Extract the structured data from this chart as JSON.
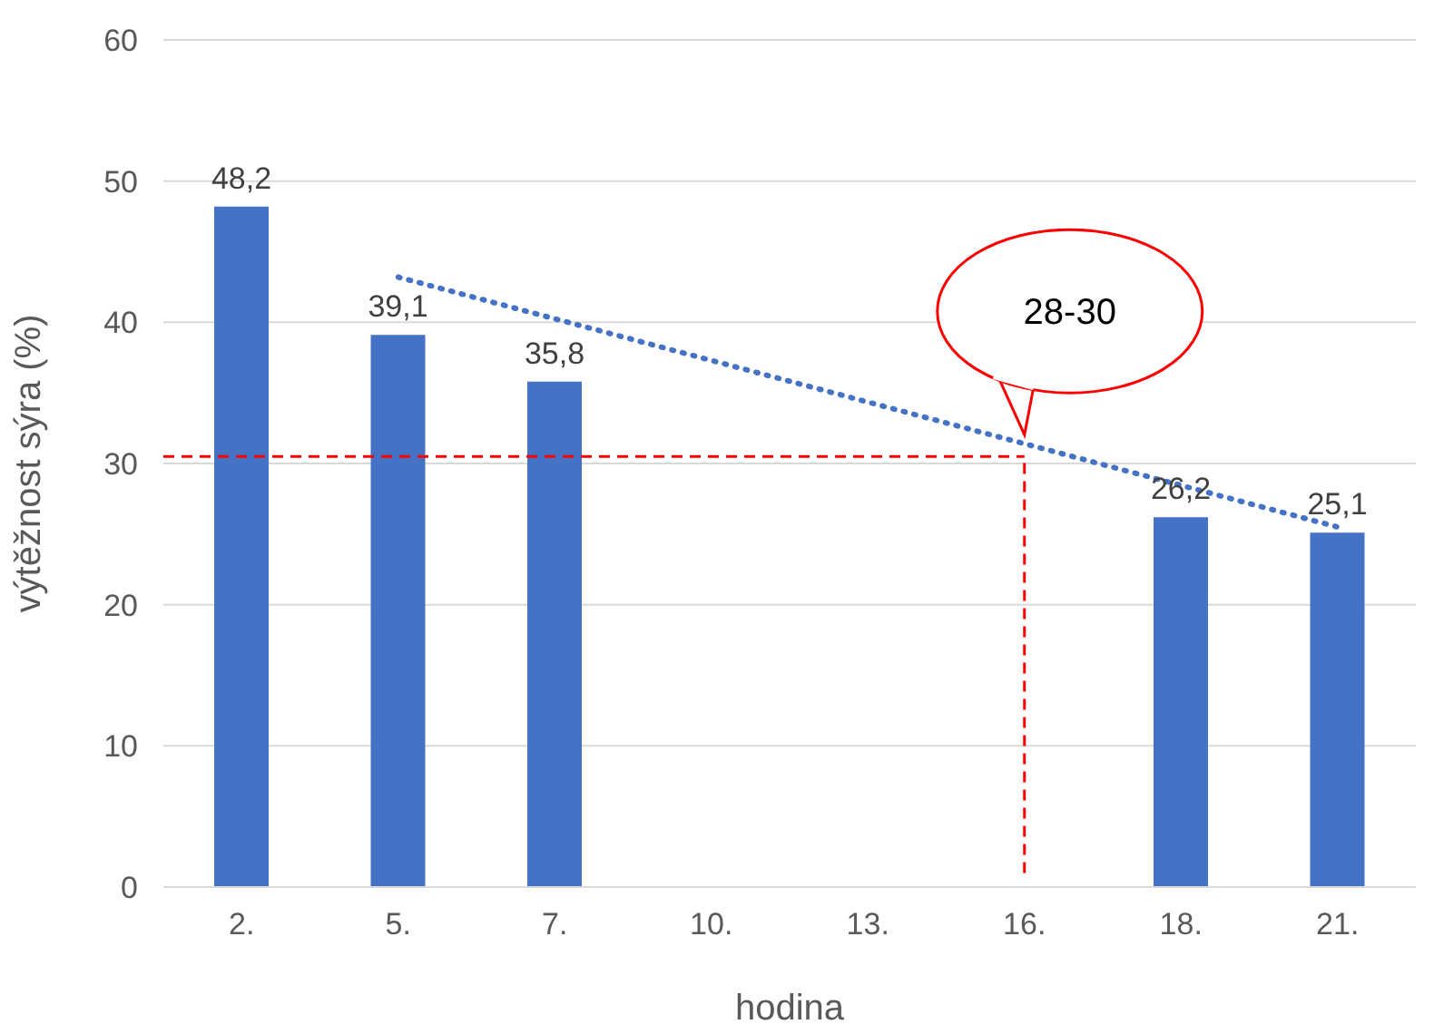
{
  "chart_data": {
    "type": "bar",
    "xlabel": "hodina",
    "ylabel": "výtěžnost sýra (%)",
    "categories": [
      "2.",
      "5.",
      "7.",
      "10.",
      "13.",
      "16.",
      "18.",
      "21."
    ],
    "series": [
      {
        "color": "#4472c4",
        "values": [
          48.2,
          39.1,
          35.8,
          null,
          null,
          null,
          26.2,
          25.1
        ],
        "value_labels": [
          "48,2",
          "39,1",
          "35,8",
          null,
          null,
          null,
          "26,2",
          "25,1"
        ]
      },
      {
        "type": "line",
        "color": "#4472c4",
        "line_style": "dotted",
        "marker": "none",
        "x": [
          "5.",
          "21."
        ],
        "values": [
          43.2,
          25.5
        ]
      }
    ],
    "ylim": [
      0,
      60
    ],
    "yticks": [
      0,
      10,
      20,
      30,
      40,
      50,
      60
    ],
    "grid": "y",
    "legend": false,
    "ref_lines": [
      {
        "axis": "y",
        "value": 30.5,
        "color": "#ff0000",
        "line_style": "dashed"
      },
      {
        "axis": "x",
        "value": "16.",
        "color": "#ff0000",
        "line_style": "dashed"
      }
    ],
    "annotations": [
      "28-30"
    ]
  }
}
